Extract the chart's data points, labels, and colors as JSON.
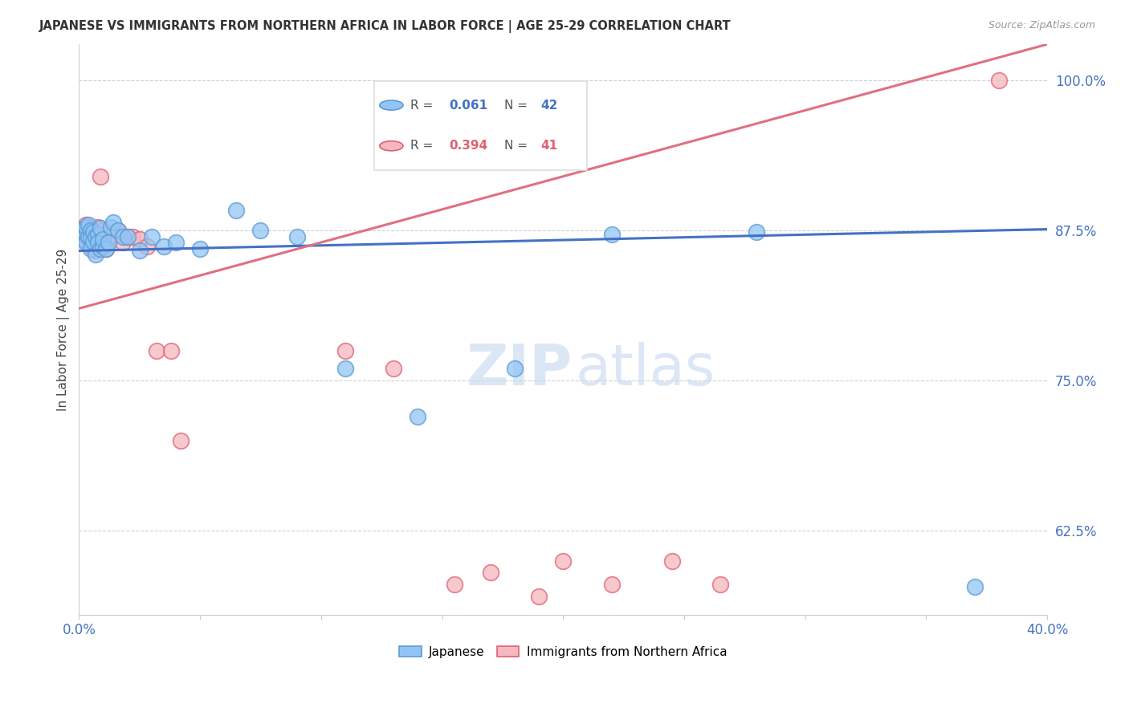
{
  "title": "JAPANESE VS IMMIGRANTS FROM NORTHERN AFRICA IN LABOR FORCE | AGE 25-29 CORRELATION CHART",
  "source_text": "Source: ZipAtlas.com",
  "ylabel": "In Labor Force | Age 25-29",
  "xlim": [
    0.0,
    0.4
  ],
  "ylim": [
    0.555,
    1.03
  ],
  "xticks": [
    0.0,
    0.05,
    0.1,
    0.15,
    0.2,
    0.25,
    0.3,
    0.35,
    0.4
  ],
  "xticklabels": [
    "0.0%",
    "",
    "",
    "",
    "",
    "",
    "",
    "",
    "40.0%"
  ],
  "yticks": [
    0.625,
    0.75,
    0.875,
    1.0
  ],
  "yticklabels": [
    "62.5%",
    "75.0%",
    "87.5%",
    "100.0%"
  ],
  "blue_color": "#92c5f5",
  "pink_color": "#f5b8c0",
  "blue_edge_color": "#5b9bd5",
  "pink_edge_color": "#e06070",
  "blue_line_color": "#4472c4",
  "pink_line_color": "#e07080",
  "legend_R_blue": "0.061",
  "legend_N_blue": "42",
  "legend_R_pink": "0.394",
  "legend_N_pink": "41",
  "blue_scatter_x": [
    0.001,
    0.002,
    0.002,
    0.003,
    0.003,
    0.003,
    0.004,
    0.004,
    0.005,
    0.005,
    0.005,
    0.006,
    0.006,
    0.007,
    0.007,
    0.008,
    0.008,
    0.009,
    0.009,
    0.01,
    0.01,
    0.011,
    0.012,
    0.013,
    0.014,
    0.016,
    0.018,
    0.02,
    0.025,
    0.03,
    0.035,
    0.04,
    0.05,
    0.065,
    0.075,
    0.09,
    0.11,
    0.14,
    0.18,
    0.22,
    0.28,
    0.37
  ],
  "blue_scatter_y": [
    0.874,
    0.876,
    0.868,
    0.872,
    0.878,
    0.865,
    0.87,
    0.88,
    0.86,
    0.875,
    0.869,
    0.874,
    0.866,
    0.87,
    0.855,
    0.872,
    0.865,
    0.877,
    0.86,
    0.862,
    0.868,
    0.86,
    0.865,
    0.878,
    0.882,
    0.875,
    0.87,
    0.87,
    0.858,
    0.87,
    0.862,
    0.865,
    0.86,
    0.892,
    0.875,
    0.87,
    0.76,
    0.72,
    0.76,
    0.872,
    0.874,
    0.578
  ],
  "pink_scatter_x": [
    0.001,
    0.002,
    0.002,
    0.003,
    0.003,
    0.004,
    0.004,
    0.005,
    0.005,
    0.005,
    0.006,
    0.006,
    0.007,
    0.007,
    0.008,
    0.008,
    0.009,
    0.01,
    0.01,
    0.011,
    0.013,
    0.014,
    0.016,
    0.018,
    0.02,
    0.022,
    0.025,
    0.028,
    0.032,
    0.038,
    0.042,
    0.11,
    0.13,
    0.155,
    0.17,
    0.19,
    0.2,
    0.22,
    0.245,
    0.265,
    0.38
  ],
  "pink_scatter_y": [
    0.874,
    0.875,
    0.868,
    0.87,
    0.88,
    0.869,
    0.876,
    0.872,
    0.862,
    0.875,
    0.875,
    0.868,
    0.874,
    0.858,
    0.87,
    0.878,
    0.92,
    0.875,
    0.868,
    0.86,
    0.87,
    0.872,
    0.875,
    0.865,
    0.87,
    0.87,
    0.868,
    0.862,
    0.775,
    0.775,
    0.7,
    0.775,
    0.76,
    0.58,
    0.59,
    0.57,
    0.6,
    0.58,
    0.6,
    0.58,
    1.0
  ],
  "blue_trend_x": [
    0.0,
    0.4
  ],
  "blue_trend_y": [
    0.858,
    0.876
  ],
  "pink_trend_x": [
    0.0,
    0.4
  ],
  "pink_trend_y": [
    0.81,
    1.03
  ]
}
